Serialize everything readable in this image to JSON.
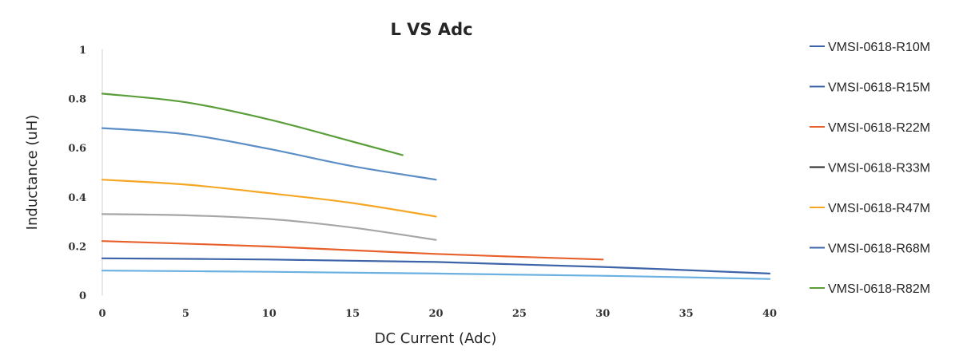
{
  "chart_data": {
    "type": "line",
    "title": "L VS Adc",
    "xlabel": "DC Current (Adc)",
    "ylabel": "Inductance (uH)",
    "xlim": [
      0,
      40
    ],
    "ylim": [
      0,
      1
    ],
    "x_ticks": [
      0,
      5,
      10,
      15,
      20,
      25,
      30,
      35,
      40
    ],
    "y_ticks": [
      0,
      0.2,
      0.4,
      0.6,
      0.8,
      1
    ],
    "x_tick_labels": [
      "0",
      "5",
      "10",
      "15",
      "20",
      "25",
      "30",
      "35",
      "40"
    ],
    "y_tick_labels": [
      "0",
      "0.2",
      "0.4",
      "0.6",
      "0.8",
      "1"
    ],
    "grid": false,
    "legend_position": "right",
    "series": [
      {
        "name": "VMSI-0618-R10M",
        "color": "#6ab0e0",
        "x": [
          0,
          10,
          20,
          30,
          40
        ],
        "y": [
          0.1,
          0.095,
          0.088,
          0.079,
          0.066
        ]
      },
      {
        "name": "VMSI-0618-R15M",
        "color": "#3d64a8",
        "x": [
          0,
          10,
          20,
          30,
          40
        ],
        "y": [
          0.15,
          0.145,
          0.135,
          0.115,
          0.088
        ]
      },
      {
        "name": "VMSI-0618-R22M",
        "color": "#e8612c",
        "x": [
          0,
          10,
          20,
          30
        ],
        "y": [
          0.22,
          0.198,
          0.168,
          0.145
        ]
      },
      {
        "name": "VMSI-0618-R33M",
        "color": "#a6a6a6",
        "x": [
          0,
          5,
          10,
          15,
          20
        ],
        "y": [
          0.33,
          0.325,
          0.31,
          0.275,
          0.225
        ]
      },
      {
        "name": "VMSI-0618-R47M",
        "color": "#f5a623",
        "x": [
          0,
          5,
          10,
          15,
          20
        ],
        "y": [
          0.47,
          0.45,
          0.415,
          0.375,
          0.32
        ]
      },
      {
        "name": "VMSI-0618-R68M",
        "color": "#5b8ec7",
        "x": [
          0,
          5,
          10,
          15,
          20
        ],
        "y": [
          0.68,
          0.655,
          0.595,
          0.525,
          0.47
        ]
      },
      {
        "name": "VMSI-0618-R82M",
        "color": "#5a9e3a",
        "x": [
          0,
          5,
          10,
          15,
          18
        ],
        "y": [
          0.82,
          0.785,
          0.715,
          0.625,
          0.57
        ]
      }
    ],
    "legend_line_colors": [
      "#3d64a8",
      "#3d64a8",
      "#e8612c",
      "#262626",
      "#f5a623",
      "#3d64a8",
      "#5a9e3a"
    ]
  }
}
